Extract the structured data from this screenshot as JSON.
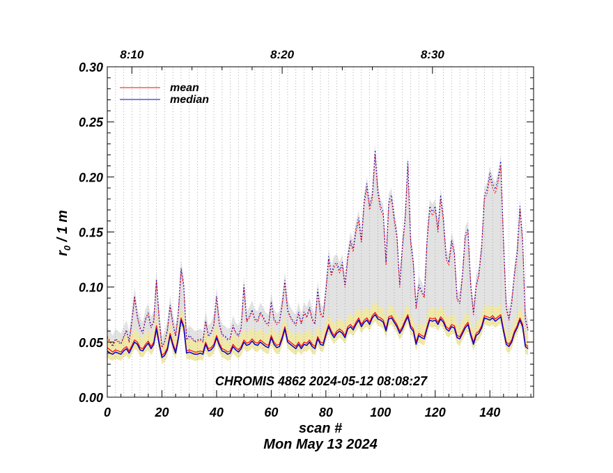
{
  "chart_data": {
    "type": "line",
    "title": "",
    "annotation": "CHROMIS 4862 2024-05-12 08:08:27",
    "xlabel": "scan #",
    "xlabel2": "Mon May 13 2024",
    "ylabel": "r",
    "ylabel_sub": "0",
    "ylabel_rest": " / 1 m",
    "xlim": [
      0,
      156
    ],
    "ylim": [
      0,
      0.3
    ],
    "x_ticks": [
      "0",
      "20",
      "40",
      "60",
      "80",
      "100",
      "120",
      "140"
    ],
    "x_tick_values": [
      0,
      20,
      40,
      60,
      80,
      100,
      120,
      140
    ],
    "y_ticks": [
      "0.00",
      "0.05",
      "0.10",
      "0.15",
      "0.20",
      "0.25",
      "0.30"
    ],
    "y_tick_values": [
      0,
      0.05,
      0.1,
      0.15,
      0.2,
      0.25,
      0.3
    ],
    "top_axis_ticks": [
      "8:10",
      "8:20",
      "8:30"
    ],
    "top_axis_tick_positions": [
      9,
      64,
      119
    ],
    "legend_placement": "top-left",
    "grid": "vertical dotted",
    "colors": {
      "mean": "#ff0000",
      "median": "#0000cc",
      "band_low": "#f0e8a8",
      "band_high": "#e2e2e2"
    },
    "series": [
      {
        "name": "mean",
        "style": "solid",
        "values": [
          0.045,
          0.043,
          0.041,
          0.043,
          0.042,
          0.041,
          0.044,
          0.046,
          0.042,
          0.047,
          0.052,
          0.05,
          0.045,
          0.044,
          0.048,
          0.051,
          0.046,
          0.05,
          0.065,
          0.05,
          0.038,
          0.04,
          0.045,
          0.058,
          0.049,
          0.042,
          0.055,
          0.072,
          0.065,
          0.042,
          0.043,
          0.042,
          0.041,
          0.041,
          0.042,
          0.041,
          0.05,
          0.044,
          0.045,
          0.048,
          0.056,
          0.049,
          0.044,
          0.043,
          0.041,
          0.042,
          0.048,
          0.045,
          0.043,
          0.046,
          0.052,
          0.049,
          0.05,
          0.053,
          0.05,
          0.049,
          0.052,
          0.05,
          0.048,
          0.047,
          0.056,
          0.05,
          0.047,
          0.048,
          0.055,
          0.064,
          0.052,
          0.05,
          0.048,
          0.046,
          0.05,
          0.046,
          0.05,
          0.049,
          0.052,
          0.048,
          0.046,
          0.055,
          0.05,
          0.049,
          0.058,
          0.066,
          0.06,
          0.056,
          0.06,
          0.062,
          0.06,
          0.056,
          0.064,
          0.066,
          0.063,
          0.068,
          0.072,
          0.066,
          0.07,
          0.072,
          0.068,
          0.074,
          0.077,
          0.073,
          0.072,
          0.07,
          0.062,
          0.073,
          0.074,
          0.07,
          0.066,
          0.06,
          0.064,
          0.07,
          0.075,
          0.065,
          0.062,
          0.05,
          0.058,
          0.056,
          0.055,
          0.064,
          0.072,
          0.071,
          0.072,
          0.068,
          0.073,
          0.07,
          0.064,
          0.062,
          0.066,
          0.065,
          0.056,
          0.055,
          0.06,
          0.065,
          0.068,
          0.058,
          0.05,
          0.058,
          0.06,
          0.065,
          0.074,
          0.073,
          0.072,
          0.074,
          0.071,
          0.073,
          0.075,
          0.062,
          0.05,
          0.048,
          0.052,
          0.06,
          0.065,
          0.072,
          0.066,
          0.048,
          0.046
        ],
        "high_values": [
          0.054,
          0.05,
          0.046,
          0.052,
          0.05,
          0.048,
          0.054,
          0.06,
          0.05,
          0.068,
          0.09,
          0.072,
          0.062,
          0.058,
          0.07,
          0.075,
          0.063,
          0.068,
          0.105,
          0.07,
          0.045,
          0.05,
          0.06,
          0.082,
          0.066,
          0.055,
          0.075,
          0.115,
          0.1,
          0.052,
          0.055,
          0.053,
          0.05,
          0.051,
          0.052,
          0.05,
          0.068,
          0.055,
          0.058,
          0.065,
          0.09,
          0.066,
          0.056,
          0.055,
          0.052,
          0.053,
          0.064,
          0.058,
          0.055,
          0.062,
          0.1,
          0.068,
          0.072,
          0.078,
          0.07,
          0.068,
          0.076,
          0.072,
          0.067,
          0.065,
          0.085,
          0.07,
          0.066,
          0.068,
          0.083,
          0.104,
          0.078,
          0.072,
          0.068,
          0.065,
          0.076,
          0.066,
          0.076,
          0.072,
          0.08,
          0.07,
          0.066,
          0.096,
          0.075,
          0.072,
          0.095,
          0.125,
          0.11,
          0.118,
          0.12,
          0.113,
          0.12,
          0.1,
          0.125,
          0.14,
          0.132,
          0.15,
          0.16,
          0.14,
          0.175,
          0.19,
          0.17,
          0.18,
          0.22,
          0.185,
          0.17,
          0.165,
          0.12,
          0.175,
          0.18,
          0.16,
          0.145,
          0.1,
          0.135,
          0.16,
          0.21,
          0.14,
          0.12,
          0.08,
          0.1,
          0.095,
          0.09,
          0.14,
          0.17,
          0.165,
          0.17,
          0.15,
          0.18,
          0.16,
          0.125,
          0.12,
          0.14,
          0.13,
          0.088,
          0.085,
          0.11,
          0.145,
          0.15,
          0.1,
          0.075,
          0.1,
          0.11,
          0.135,
          0.18,
          0.185,
          0.2,
          0.19,
          0.185,
          0.195,
          0.21,
          0.14,
          0.08,
          0.07,
          0.085,
          0.11,
          0.13,
          0.17,
          0.14,
          0.07,
          0.06
        ]
      },
      {
        "name": "median",
        "style": "solid",
        "values": [
          0.042,
          0.04,
          0.039,
          0.041,
          0.04,
          0.039,
          0.042,
          0.044,
          0.04,
          0.045,
          0.05,
          0.048,
          0.043,
          0.042,
          0.046,
          0.049,
          0.044,
          0.048,
          0.062,
          0.048,
          0.036,
          0.038,
          0.043,
          0.056,
          0.047,
          0.04,
          0.053,
          0.07,
          0.063,
          0.04,
          0.041,
          0.04,
          0.039,
          0.039,
          0.04,
          0.039,
          0.048,
          0.042,
          0.043,
          0.046,
          0.054,
          0.047,
          0.042,
          0.041,
          0.039,
          0.04,
          0.046,
          0.043,
          0.041,
          0.044,
          0.05,
          0.047,
          0.048,
          0.051,
          0.048,
          0.047,
          0.05,
          0.048,
          0.046,
          0.045,
          0.054,
          0.048,
          0.045,
          0.046,
          0.053,
          0.062,
          0.05,
          0.048,
          0.046,
          0.044,
          0.048,
          0.044,
          0.048,
          0.047,
          0.05,
          0.046,
          0.044,
          0.053,
          0.048,
          0.047,
          0.056,
          0.064,
          0.058,
          0.054,
          0.058,
          0.06,
          0.058,
          0.054,
          0.062,
          0.064,
          0.061,
          0.066,
          0.07,
          0.064,
          0.068,
          0.07,
          0.066,
          0.072,
          0.075,
          0.071,
          0.07,
          0.068,
          0.06,
          0.071,
          0.072,
          0.068,
          0.064,
          0.058,
          0.062,
          0.068,
          0.073,
          0.063,
          0.06,
          0.048,
          0.056,
          0.054,
          0.053,
          0.062,
          0.07,
          0.069,
          0.07,
          0.066,
          0.071,
          0.068,
          0.062,
          0.06,
          0.064,
          0.063,
          0.054,
          0.053,
          0.058,
          0.063,
          0.066,
          0.056,
          0.048,
          0.056,
          0.058,
          0.063,
          0.072,
          0.071,
          0.07,
          0.072,
          0.069,
          0.071,
          0.073,
          0.06,
          0.048,
          0.046,
          0.05,
          0.058,
          0.063,
          0.07,
          0.064,
          0.046,
          0.044
        ]
      }
    ]
  }
}
